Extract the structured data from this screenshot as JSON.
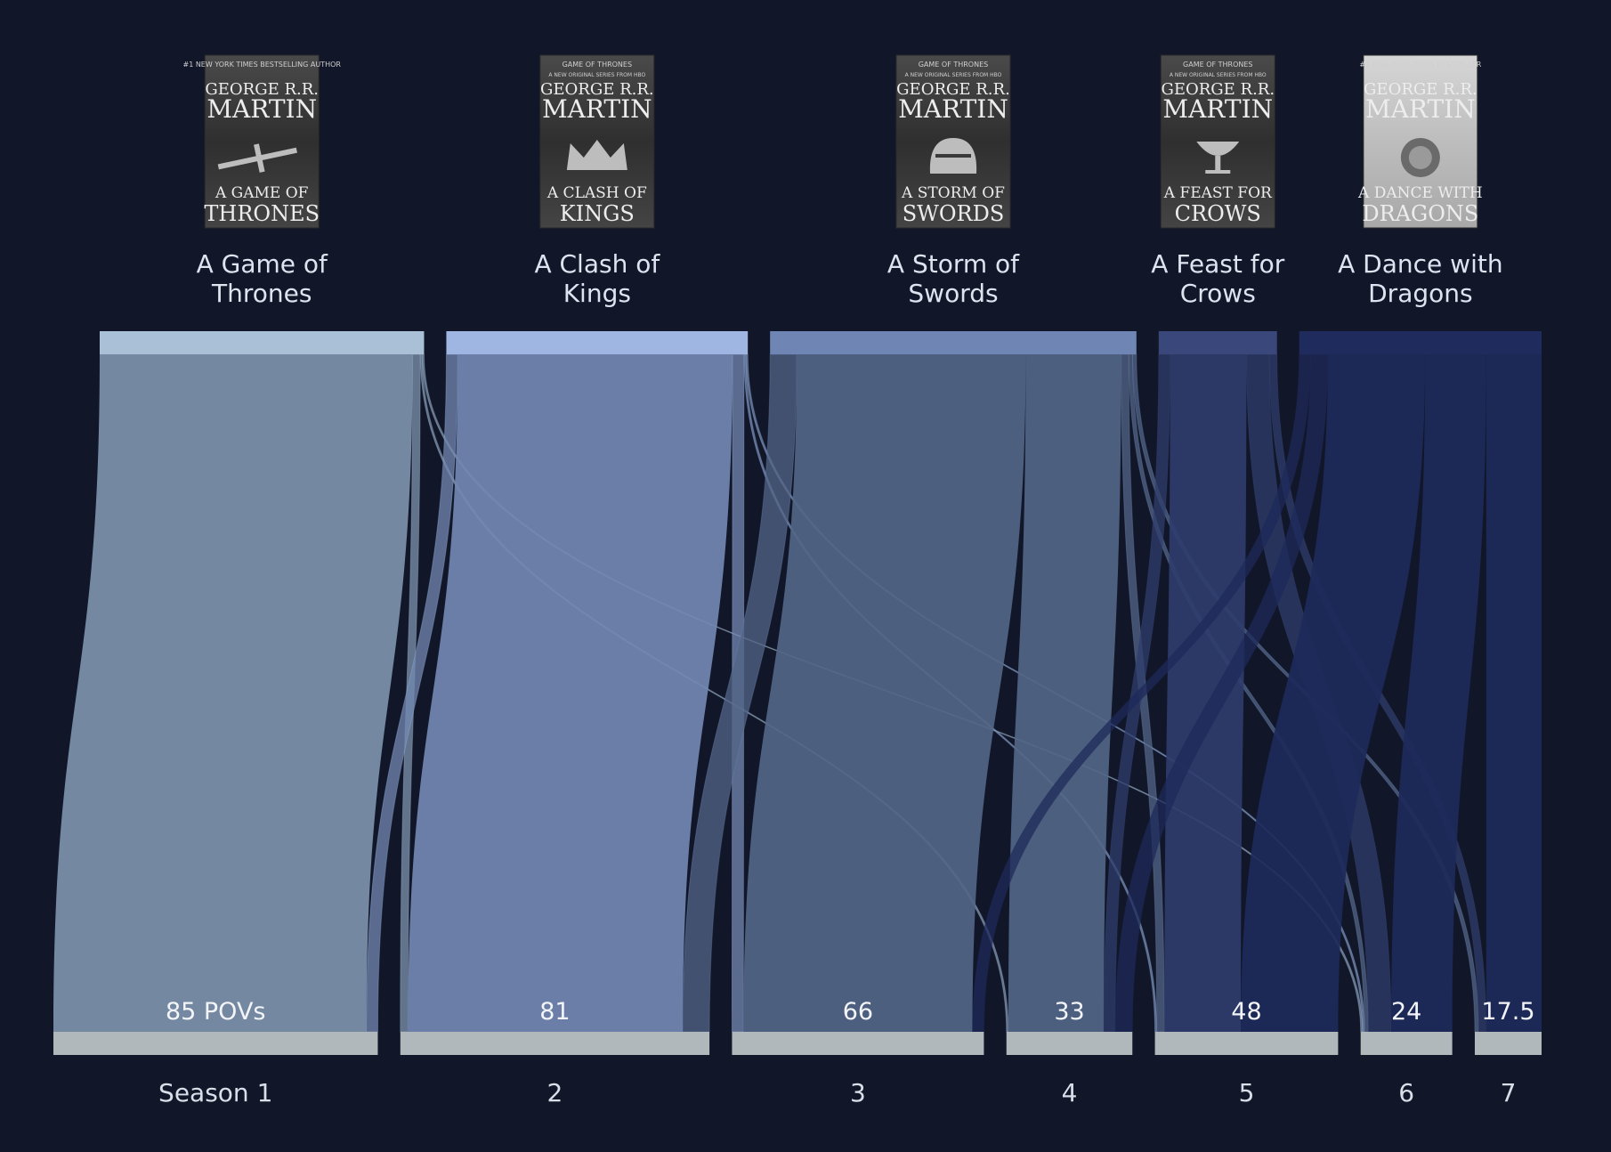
{
  "chart_data": {
    "type": "sankey",
    "title": "",
    "books": [
      {
        "id": "b1",
        "title_lines": [
          "A Game of",
          "Thrones"
        ],
        "cover": {
          "top": "#1 NEW YORK TIMES BESTSELLING AUTHOR",
          "series": "",
          "author1": "GEORGE R.R.",
          "author2": "MARTIN",
          "title1": "A GAME OF",
          "title2": "THRONES",
          "emblem": "sword"
        },
        "color": "#a9c0d6",
        "link_color": "#7d93ad",
        "order": 0
      },
      {
        "id": "b2",
        "title_lines": [
          "A Clash of",
          "Kings"
        ],
        "cover": {
          "top": "GAME OF THRONES",
          "series": "A NEW ORIGINAL SERIES FROM HBO",
          "author1": "GEORGE R.R.",
          "author2": "MARTIN",
          "title1": "A CLASH OF",
          "title2": "KINGS",
          "emblem": "crown"
        },
        "color": "#9fb6e2",
        "link_color": "#7388b2",
        "order": 1
      },
      {
        "id": "b3",
        "title_lines": [
          "A Storm of",
          "Swords"
        ],
        "cover": {
          "top": "GAME OF THRONES",
          "series": "A NEW ORIGINAL SERIES FROM HBO",
          "author1": "GEORGE R.R.",
          "author2": "MARTIN",
          "title1": "A STORM OF",
          "title2": "SWORDS",
          "emblem": "helm"
        },
        "color": "#6f86b5",
        "link_color": "#536687",
        "order": 2
      },
      {
        "id": "b4",
        "title_lines": [
          "A Feast for",
          "Crows"
        ],
        "cover": {
          "top": "GAME OF THRONES",
          "series": "A NEW ORIGINAL SERIES FROM HBO",
          "author1": "GEORGE R.R.",
          "author2": "MARTIN",
          "title1": "A FEAST FOR",
          "title2": "CROWS",
          "emblem": "chalice"
        },
        "color": "#39477b",
        "link_color": "#2f3d6c",
        "order": 3
      },
      {
        "id": "b5",
        "title_lines": [
          "A Dance with",
          "Dragons"
        ],
        "cover": {
          "top": "#1 NEW YORK TIMES BESTSELLER",
          "series": "GAME OF THRONES",
          "author1": "GEORGE R.R.",
          "author2": "MARTIN",
          "title1": "A DANCE WITH",
          "title2": "DRAGONS",
          "emblem": "dragon"
        },
        "color": "#1f2b5c",
        "link_color": "#1d2a5a",
        "order": 4
      }
    ],
    "seasons": [
      {
        "id": "s1",
        "label": "Season 1",
        "value": 85,
        "value_label": "85 POVs"
      },
      {
        "id": "s2",
        "label": "2",
        "value": 81,
        "value_label": "81"
      },
      {
        "id": "s3",
        "label": "3",
        "value": 66,
        "value_label": "66"
      },
      {
        "id": "s4",
        "label": "4",
        "value": 33,
        "value_label": "33"
      },
      {
        "id": "s5",
        "label": "5",
        "value": 48,
        "value_label": "48"
      },
      {
        "id": "s6",
        "label": "6",
        "value": 24,
        "value_label": "24"
      },
      {
        "id": "s7",
        "label": "7",
        "value": 17.5,
        "value_label": "17.5"
      }
    ],
    "links": [
      {
        "source": "b1",
        "target": "s1",
        "value": 82
      },
      {
        "source": "b1",
        "target": "s2",
        "value": 2
      },
      {
        "source": "b1",
        "target": "s4",
        "value": 0.5
      },
      {
        "source": "b1",
        "target": "s6",
        "value": 0.5
      },
      {
        "source": "b2",
        "target": "s2",
        "value": 72
      },
      {
        "source": "b2",
        "target": "s1",
        "value": 3
      },
      {
        "source": "b2",
        "target": "s3",
        "value": 3
      },
      {
        "source": "b2",
        "target": "s5",
        "value": 0.5
      },
      {
        "source": "b2",
        "target": "s6",
        "value": 0.5
      },
      {
        "source": "b3",
        "target": "s3",
        "value": 60
      },
      {
        "source": "b3",
        "target": "s2",
        "value": 7
      },
      {
        "source": "b3",
        "target": "s4",
        "value": 25
      },
      {
        "source": "b3",
        "target": "s5",
        "value": 2
      },
      {
        "source": "b3",
        "target": "s6",
        "value": 1
      },
      {
        "source": "b3",
        "target": "s7",
        "value": 1
      },
      {
        "source": "b4",
        "target": "s5",
        "value": 20
      },
      {
        "source": "b4",
        "target": "s4",
        "value": 3
      },
      {
        "source": "b4",
        "target": "s6",
        "value": 6
      },
      {
        "source": "b4",
        "target": "s7",
        "value": 2
      },
      {
        "source": "b5",
        "target": "s5",
        "value": 25.5
      },
      {
        "source": "b5",
        "target": "s3",
        "value": 3
      },
      {
        "source": "b5",
        "target": "s4",
        "value": 4.5
      },
      {
        "source": "b5",
        "target": "s6",
        "value": 16
      },
      {
        "source": "b5",
        "target": "s7",
        "value": 14.5
      }
    ],
    "colors": {
      "background": "#111729",
      "season_bar": "#b0b8bb",
      "book_title": "#dde3ef",
      "value_label": "#f2f4f8",
      "season_label": "#d9dee8"
    }
  }
}
